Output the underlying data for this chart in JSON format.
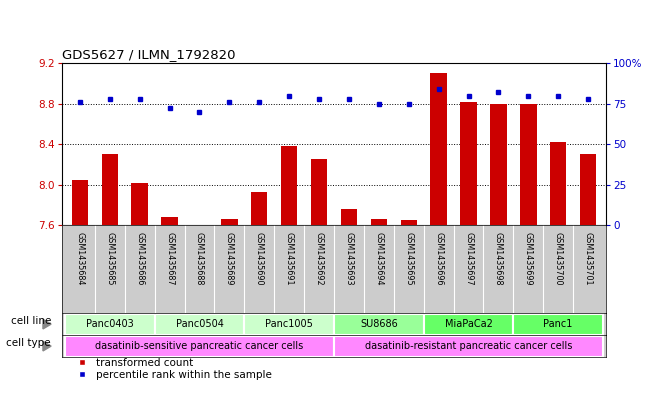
{
  "title": "GDS5627 / ILMN_1792820",
  "samples": [
    "GSM1435684",
    "GSM1435685",
    "GSM1435686",
    "GSM1435687",
    "GSM1435688",
    "GSM1435689",
    "GSM1435690",
    "GSM1435691",
    "GSM1435692",
    "GSM1435693",
    "GSM1435694",
    "GSM1435695",
    "GSM1435696",
    "GSM1435697",
    "GSM1435698",
    "GSM1435699",
    "GSM1435700",
    "GSM1435701"
  ],
  "transformed_count": [
    8.05,
    8.3,
    8.02,
    7.68,
    7.6,
    7.66,
    7.93,
    8.38,
    8.25,
    7.76,
    7.66,
    7.65,
    9.1,
    8.82,
    8.8,
    8.8,
    8.42,
    8.3
  ],
  "percentile_rank": [
    76,
    78,
    78,
    72,
    70,
    76,
    76,
    80,
    78,
    78,
    75,
    75,
    84,
    80,
    82,
    80,
    80,
    78
  ],
  "ylim_left": [
    7.6,
    9.2
  ],
  "ylim_right": [
    0,
    100
  ],
  "yticks_left": [
    7.6,
    8.0,
    8.4,
    8.8,
    9.2
  ],
  "yticks_right": [
    0,
    25,
    50,
    75,
    100
  ],
  "ytick_labels_right": [
    "0",
    "25",
    "50",
    "75",
    "100%"
  ],
  "bar_color": "#cc0000",
  "dot_color": "#0000cc",
  "cell_lines": [
    {
      "name": "Panc0403",
      "start": 0,
      "end": 2,
      "color": "#ccffcc"
    },
    {
      "name": "Panc0504",
      "start": 3,
      "end": 5,
      "color": "#ccffcc"
    },
    {
      "name": "Panc1005",
      "start": 6,
      "end": 8,
      "color": "#ccffcc"
    },
    {
      "name": "SU8686",
      "start": 9,
      "end": 11,
      "color": "#99ff99"
    },
    {
      "name": "MiaPaCa2",
      "start": 12,
      "end": 14,
      "color": "#66ff66"
    },
    {
      "name": "Panc1",
      "start": 15,
      "end": 17,
      "color": "#66ff66"
    }
  ],
  "cell_types": [
    {
      "name": "dasatinib-sensitive pancreatic cancer cells",
      "start": 0,
      "end": 8
    },
    {
      "name": "dasatinib-resistant pancreatic cancer cells",
      "start": 9,
      "end": 17
    }
  ],
  "cell_line_colors": {
    "Panc0403": "#ccffcc",
    "Panc0504": "#ccffcc",
    "Panc1005": "#ccffcc",
    "SU8686": "#99ff99",
    "MiaPaCa2": "#66ff66",
    "Panc1": "#66ff66"
  },
  "cell_type_color": "#ff88ff",
  "sample_band_color": "#cccccc",
  "tick_label_color_left": "#cc0000",
  "tick_label_color_right": "#0000cc"
}
